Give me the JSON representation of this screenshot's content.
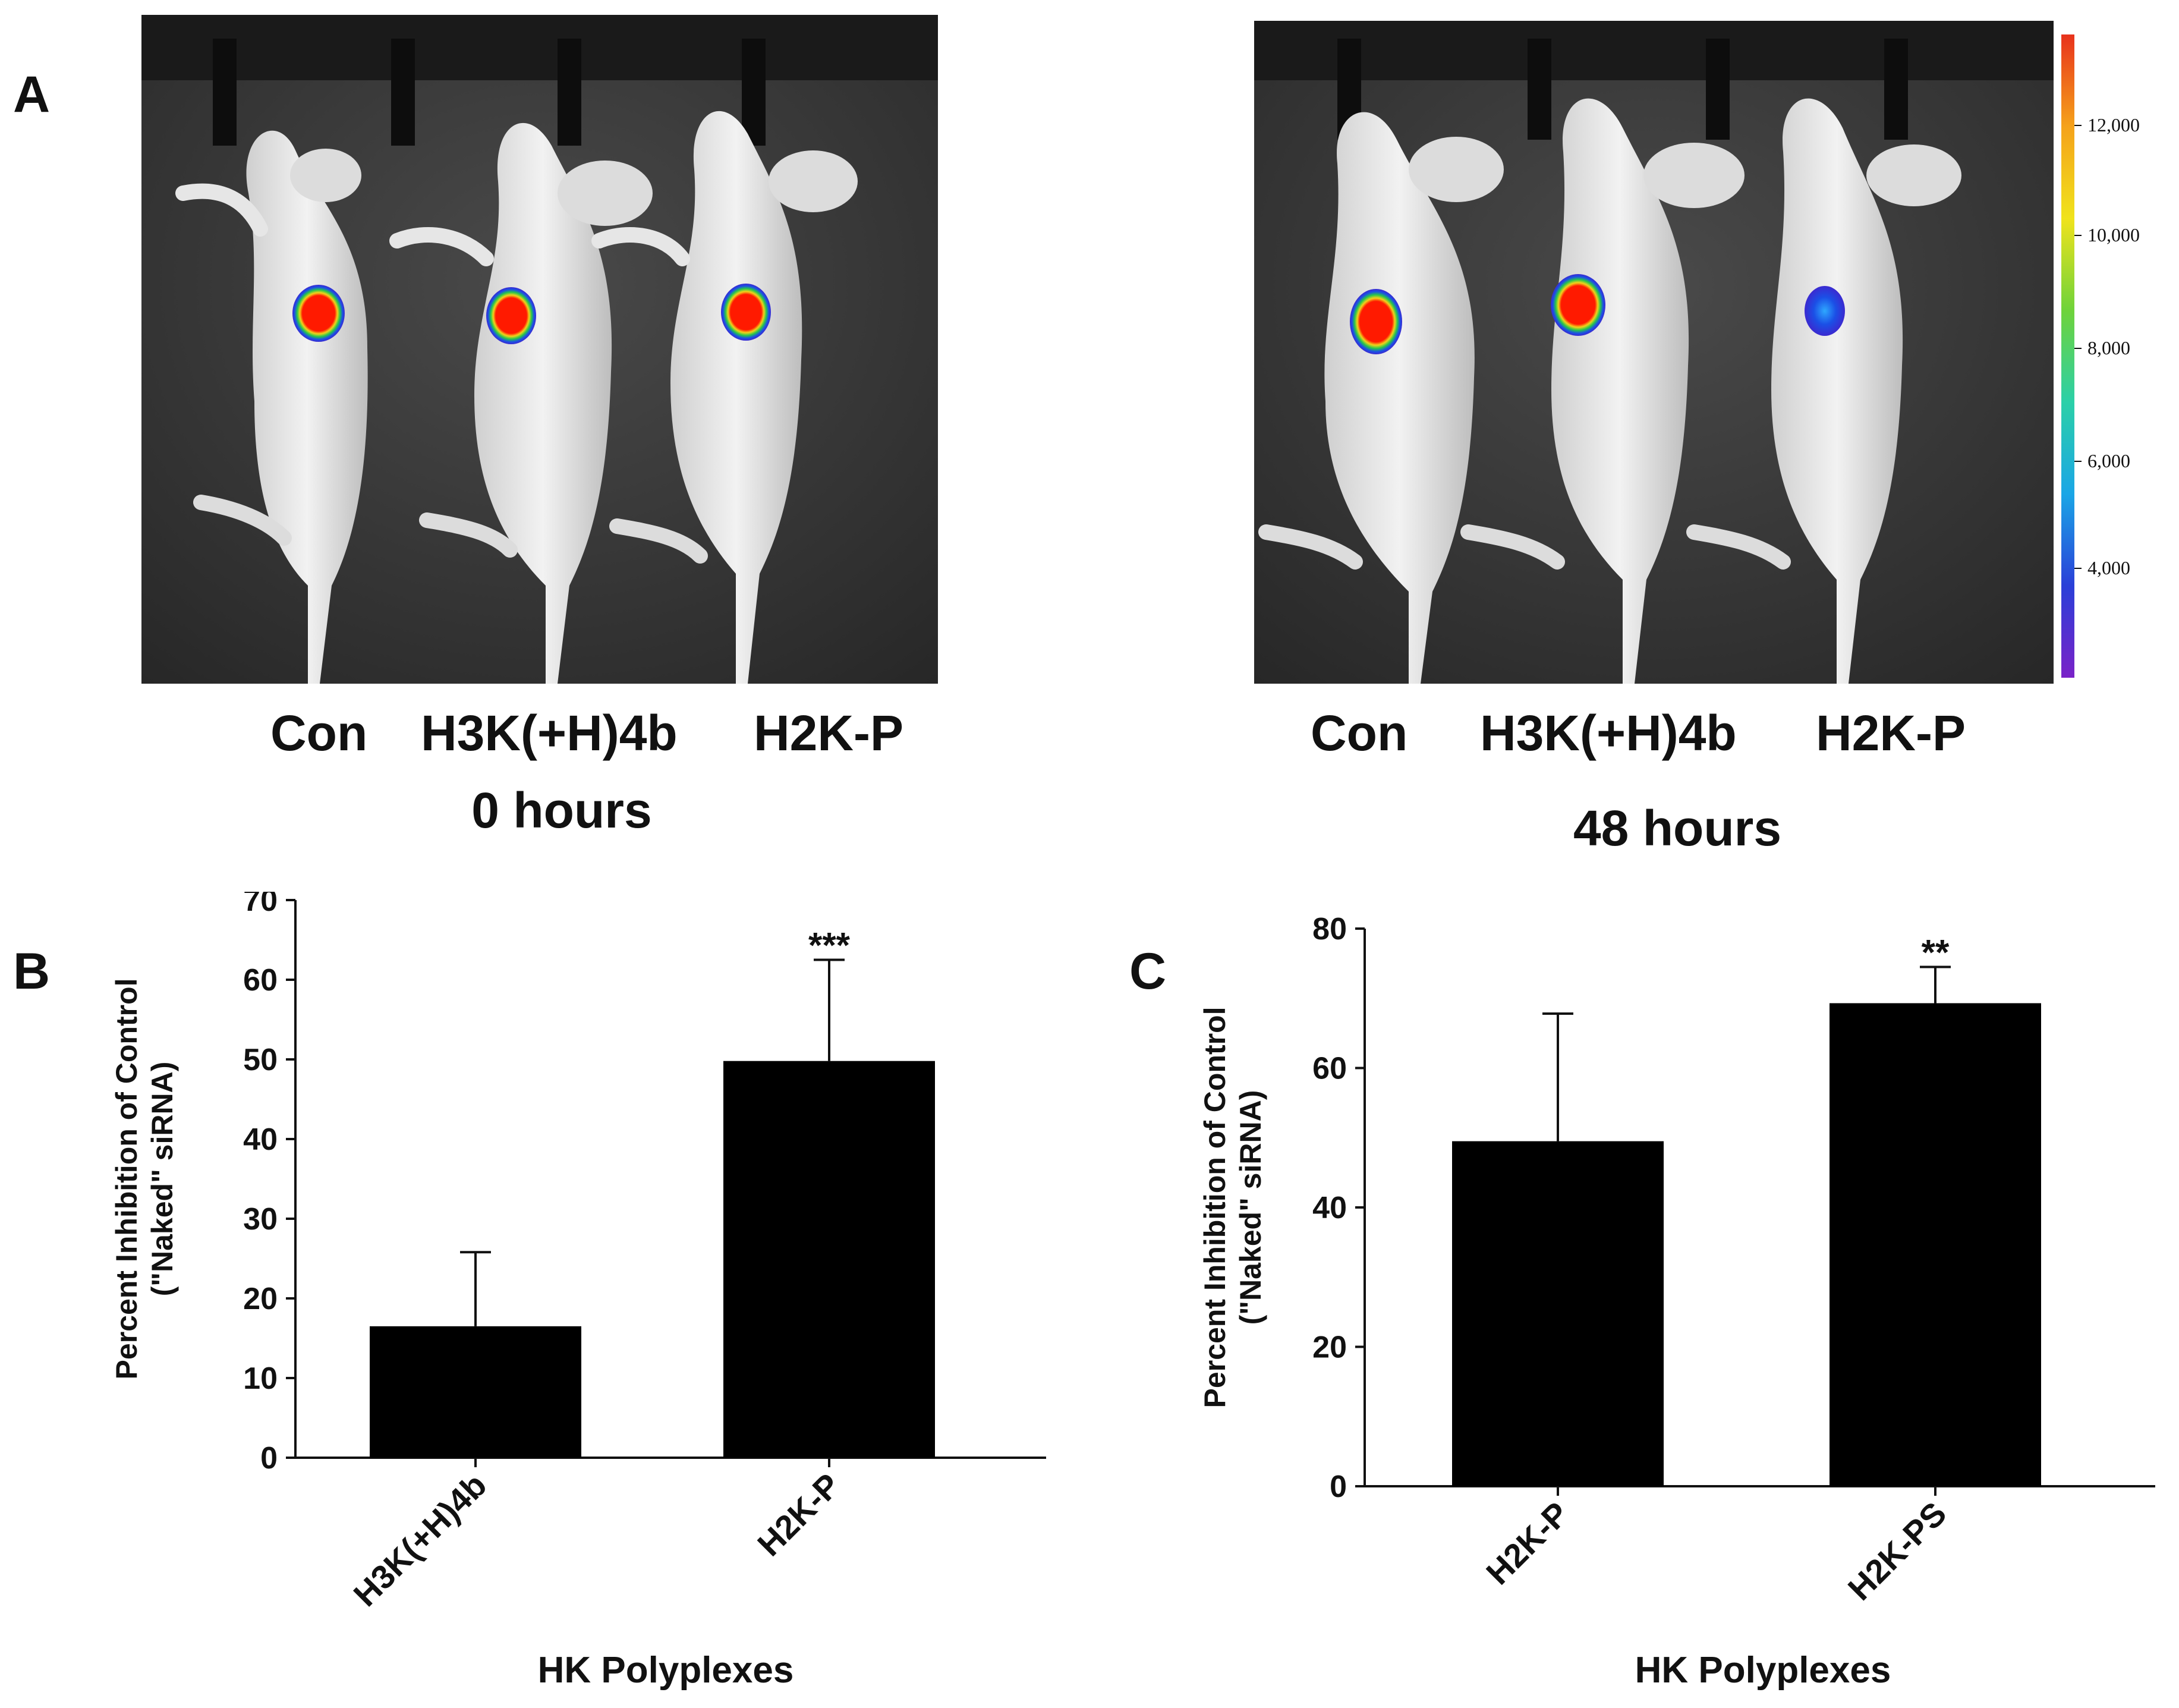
{
  "panels": {
    "a_label": "A",
    "b_label": "B",
    "c_label": "C"
  },
  "imaging": {
    "groups": [
      "Con",
      "H3K(+H)4b",
      "H2K-P"
    ],
    "time_left": "0 hours",
    "time_right": "48 hours",
    "colorbar_ticks": [
      "12,000",
      "10,000",
      "8,000",
      "6,000",
      "4,000"
    ],
    "colorbar_colors": [
      "#e8321c",
      "#f5a21a",
      "#f0e31c",
      "#6fd33a",
      "#2bd0a8",
      "#1aa6e6",
      "#2a3fd8",
      "#7a22c8"
    ]
  },
  "chart_data": [
    {
      "type": "bar",
      "panel": "B",
      "categories": [
        "H3K(+H)4b",
        "H2K-P"
      ],
      "values": [
        16.5,
        49.8
      ],
      "error_upper": [
        25.8,
        62.5
      ],
      "annotations": [
        "",
        "***"
      ],
      "xlabel": "HK Polyplexes",
      "ylabel_line1": "Percent Inhibition of Control",
      "ylabel_line2": "(\"Naked\" siRNA)",
      "ylim": [
        0,
        70
      ],
      "yticks": [
        0,
        10,
        20,
        30,
        40,
        50,
        60,
        70
      ],
      "bar_color": "#000000"
    },
    {
      "type": "bar",
      "panel": "C",
      "categories": [
        "H2K-P",
        "H2K-PS"
      ],
      "values": [
        49.5,
        69.3
      ],
      "error_upper": [
        67.8,
        74.5
      ],
      "annotations": [
        "",
        "**"
      ],
      "xlabel": "HK Polyplexes",
      "ylabel_line1": "Percent Inhibition of Control",
      "ylabel_line2": "(\"Naked\" siRNA)",
      "ylim": [
        0,
        80
      ],
      "yticks": [
        0,
        20,
        40,
        60,
        80
      ],
      "bar_color": "#000000"
    }
  ]
}
